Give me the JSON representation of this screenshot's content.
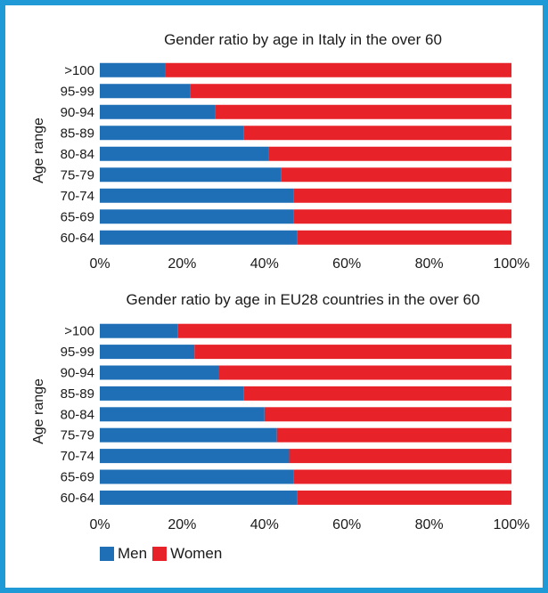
{
  "colors": {
    "frame": "#1f9ad6",
    "men": "#1f6fb6",
    "women": "#e82229"
  },
  "legend": {
    "men": "Men",
    "women": "Women"
  },
  "chart_data": [
    {
      "type": "bar",
      "orientation": "horizontal",
      "stacked": true,
      "title": "Gender ratio by age in Italy in the over 60",
      "ylabel": "Age range",
      "xlabel": "",
      "xlim": [
        0,
        100
      ],
      "xticks": [
        "0%",
        "20%",
        "40%",
        "60%",
        "80%",
        "100%"
      ],
      "categories": [
        ">100",
        "95-99",
        "90-94",
        "85-89",
        "80-84",
        "75-79",
        "70-74",
        "65-69",
        "60-64"
      ],
      "series": [
        {
          "name": "Men",
          "values": [
            16,
            22,
            28,
            35,
            41,
            44,
            47,
            47,
            48
          ]
        },
        {
          "name": "Women",
          "values": [
            84,
            78,
            72,
            65,
            59,
            56,
            53,
            53,
            52
          ]
        }
      ]
    },
    {
      "type": "bar",
      "orientation": "horizontal",
      "stacked": true,
      "title": "Gender ratio by age in EU28 countries in the over 60",
      "ylabel": "Age range",
      "xlabel": "",
      "xlim": [
        0,
        100
      ],
      "xticks": [
        "0%",
        "20%",
        "40%",
        "60%",
        "80%",
        "100%"
      ],
      "categories": [
        ">100",
        "95-99",
        "90-94",
        "85-89",
        "80-84",
        "75-79",
        "70-74",
        "65-69",
        "60-64"
      ],
      "series": [
        {
          "name": "Men",
          "values": [
            19,
            23,
            29,
            35,
            40,
            43,
            46,
            47,
            48
          ]
        },
        {
          "name": "Women",
          "values": [
            81,
            77,
            71,
            65,
            60,
            57,
            54,
            53,
            52
          ]
        }
      ]
    }
  ]
}
